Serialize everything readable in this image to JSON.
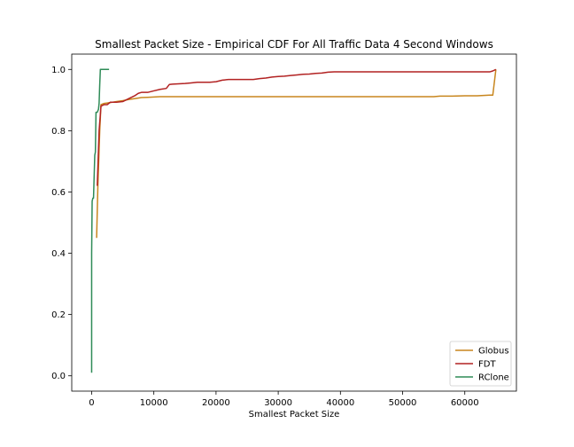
{
  "chart_data": {
    "type": "line",
    "title": "Smallest Packet Size - Empirical CDF For All Traffic Data 4 Second Windows",
    "xlabel": "Smallest Packet Size",
    "ylabel": "",
    "xlim": [
      -3200,
      68300
    ],
    "ylim": [
      -0.05,
      1.05
    ],
    "xticks": [
      0,
      10000,
      20000,
      30000,
      40000,
      50000,
      60000
    ],
    "xtick_labels": [
      "0",
      "10000",
      "20000",
      "30000",
      "40000",
      "50000",
      "60000"
    ],
    "yticks": [
      0.0,
      0.2,
      0.4,
      0.6,
      0.8,
      1.0
    ],
    "ytick_labels": [
      "0.0",
      "0.2",
      "0.4",
      "0.6",
      "0.8",
      "1.0"
    ],
    "grid": false,
    "legend_position": "lower-right",
    "series": [
      {
        "name": "Globus",
        "color": "#c8861e",
        "x": [
          800,
          1000,
          1300,
          1500,
          2000,
          3000,
          4000,
          5000,
          6000,
          7000,
          8000,
          9000,
          10000,
          11000,
          15000,
          20000,
          30000,
          40000,
          50000,
          55000,
          56000,
          58000,
          60000,
          62000,
          64000,
          64500,
          65000
        ],
        "y": [
          0.45,
          0.62,
          0.8,
          0.885,
          0.889,
          0.892,
          0.895,
          0.898,
          0.902,
          0.905,
          0.908,
          0.909,
          0.91,
          0.911,
          0.911,
          0.911,
          0.911,
          0.911,
          0.911,
          0.911,
          0.913,
          0.913,
          0.914,
          0.914,
          0.916,
          0.916,
          1.0
        ]
      },
      {
        "name": "FDT",
        "color": "#b22222",
        "x": [
          900,
          1200,
          1500,
          2000,
          2500,
          3000,
          3500,
          4000,
          5000,
          6000,
          7000,
          7500,
          8000,
          9000,
          10000,
          11000,
          12000,
          12500,
          13000,
          14000,
          15000,
          16000,
          17000,
          18000,
          19000,
          20000,
          21000,
          22000,
          23000,
          24000,
          25000,
          26000,
          27000,
          28000,
          29000,
          30000,
          31000,
          32000,
          33000,
          34000,
          35000,
          36000,
          37000,
          38000,
          39000,
          40000,
          50000,
          60000,
          64000,
          64500,
          65000
        ],
        "y": [
          0.62,
          0.8,
          0.88,
          0.885,
          0.885,
          0.893,
          0.893,
          0.893,
          0.895,
          0.905,
          0.915,
          0.922,
          0.925,
          0.925,
          0.93,
          0.935,
          0.938,
          0.951,
          0.952,
          0.953,
          0.954,
          0.956,
          0.958,
          0.958,
          0.958,
          0.96,
          0.965,
          0.967,
          0.967,
          0.967,
          0.967,
          0.967,
          0.97,
          0.972,
          0.975,
          0.977,
          0.978,
          0.98,
          0.982,
          0.984,
          0.985,
          0.987,
          0.988,
          0.991,
          0.992,
          0.992,
          0.992,
          0.992,
          0.992,
          0.995,
          1.0
        ]
      },
      {
        "name": "RClone",
        "color": "#2e8b57",
        "x": [
          0,
          0,
          80,
          200,
          300,
          500,
          600,
          700,
          900,
          1100,
          1200,
          1300,
          1400,
          1500,
          1800,
          2200,
          2800
        ],
        "y": [
          0.01,
          0.4,
          0.57,
          0.58,
          0.58,
          0.72,
          0.73,
          0.86,
          0.86,
          0.87,
          0.89,
          0.95,
          1.0,
          1.0,
          1.0,
          1.0,
          1.0
        ]
      }
    ]
  }
}
